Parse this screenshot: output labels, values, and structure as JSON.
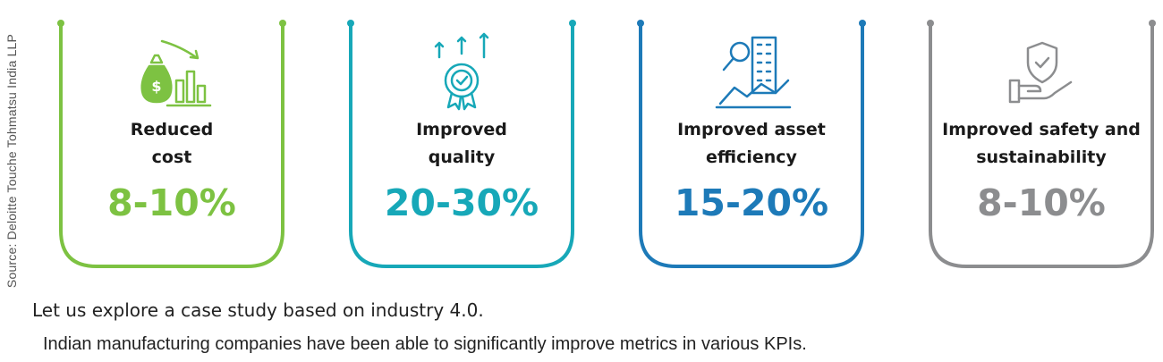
{
  "source_note": "Source: Deloitte Touche Tohmatsu India LLP",
  "cards": [
    {
      "label": "Reduced\ncost",
      "value": "8-10%",
      "color": "#7DC242",
      "icon": "money-bag-chart-icon"
    },
    {
      "label": "Improved\nquality",
      "value": "20-30%",
      "color": "#17A8B8",
      "icon": "quality-badge-icon"
    },
    {
      "label": "Improved asset\nefficiency",
      "value": "15-20%",
      "color": "#1D7AB8",
      "icon": "building-search-icon"
    },
    {
      "label": "Improved safety and\nsustainability",
      "value": "8-10%",
      "color": "#8C8D8F",
      "icon": "shield-hand-icon"
    }
  ],
  "text": {
    "line1": "Let us explore a case study based on industry 4.0.",
    "line2": "Indian manufacturing companies have been able to significantly improve metrics in various KPIs."
  }
}
